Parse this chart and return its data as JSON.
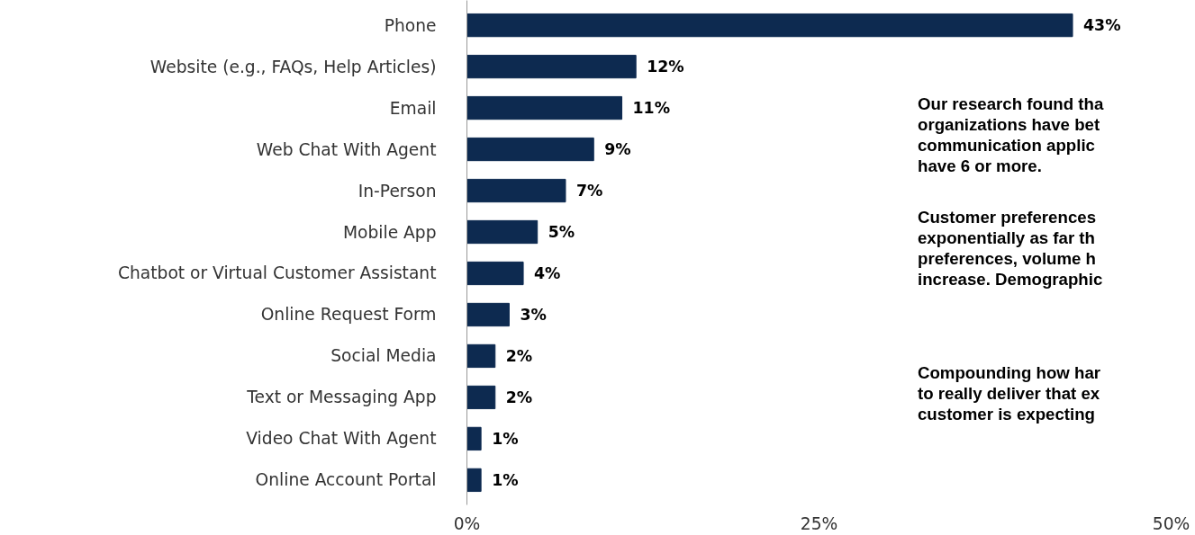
{
  "chart_data": {
    "type": "bar",
    "orientation": "horizontal",
    "categories": [
      "Phone",
      "Website (e.g., FAQs, Help Articles)",
      "Email",
      "Web Chat With Agent",
      "In-Person",
      "Mobile App",
      "Chatbot or Virtual Customer Assistant",
      "Online Request Form",
      "Social Media",
      "Text or Messaging App",
      "Video Chat With Agent",
      "Online Account Portal"
    ],
    "values": [
      43,
      12,
      11,
      9,
      7,
      5,
      4,
      3,
      2,
      2,
      1,
      1
    ],
    "value_labels": [
      "43%",
      "12%",
      "11%",
      "9%",
      "7%",
      "5%",
      "4%",
      "3%",
      "2%",
      "2%",
      "1%",
      "1%"
    ],
    "color": "#0d2a50",
    "xlim": [
      0,
      50
    ],
    "xticks": [
      {
        "value": 0,
        "label": "0%"
      },
      {
        "value": 25,
        "label": "25%"
      },
      {
        "value": 50,
        "label": "50%"
      }
    ],
    "grid": false,
    "annotations": [
      "Our research found tha\norganizations have bet\ncommunication applic\nhave 6 or more.",
      "Customer preferences\nexponentially as far th\npreferences, volume h\nincrease. Demographic",
      "Compounding how har\nto really deliver that ex\ncustomer is expecting"
    ]
  }
}
